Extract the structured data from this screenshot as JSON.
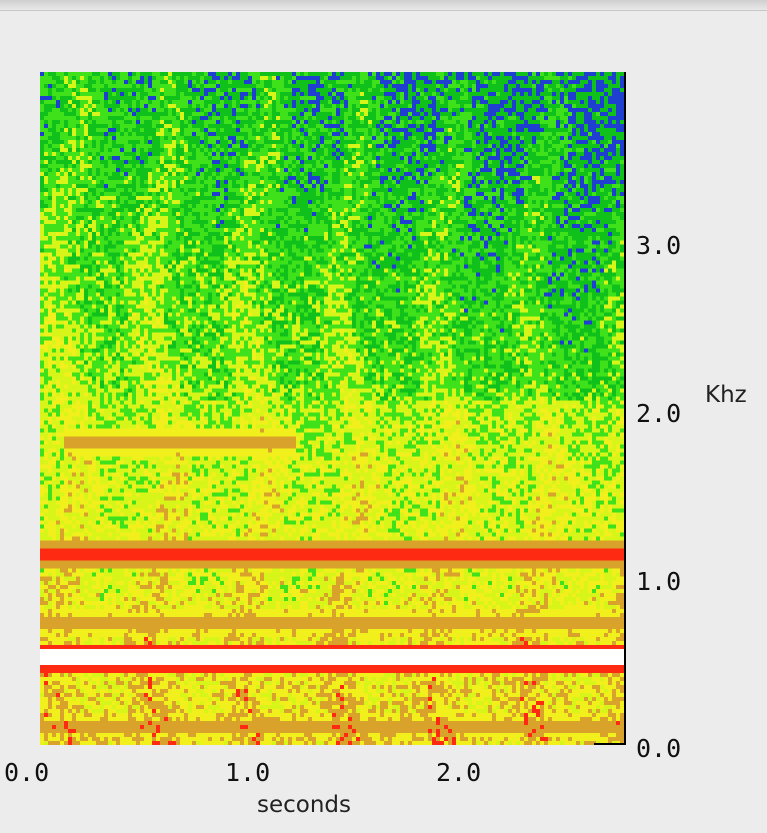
{
  "chart_data": {
    "type": "heatmap",
    "title": "",
    "xlabel": "seconds",
    "ylabel": "Khz",
    "x_ticks": [
      "0.0",
      "1.0",
      "2.0"
    ],
    "y_ticks": [
      "0.0",
      "1.0",
      "2.0",
      "3.0"
    ],
    "xlim": [
      0.0,
      2.75
    ],
    "ylim": [
      0.0,
      3.9
    ],
    "colorscale": [
      "#1f3fd0",
      "#11c11b",
      "#3fe21a",
      "#d8f51a",
      "#f2f01c",
      "#d9a22a",
      "#ff2a12",
      "#ffffff"
    ],
    "bands": [
      {
        "freq_khz": 0.5,
        "intensity": "very high",
        "x_range": [
          0.0,
          2.75
        ]
      },
      {
        "freq_khz": 1.1,
        "intensity": "high",
        "x_range": [
          0.0,
          2.75
        ]
      },
      {
        "freq_khz": 0.7,
        "intensity": "medium",
        "x_range": [
          0.0,
          2.75
        ]
      },
      {
        "freq_khz": 1.75,
        "intensity": "medium",
        "x_range": [
          0.1,
          1.2
        ]
      },
      {
        "freq_khz": 0.1,
        "intensity": "medium",
        "x_range": [
          0.0,
          2.75
        ]
      }
    ]
  }
}
